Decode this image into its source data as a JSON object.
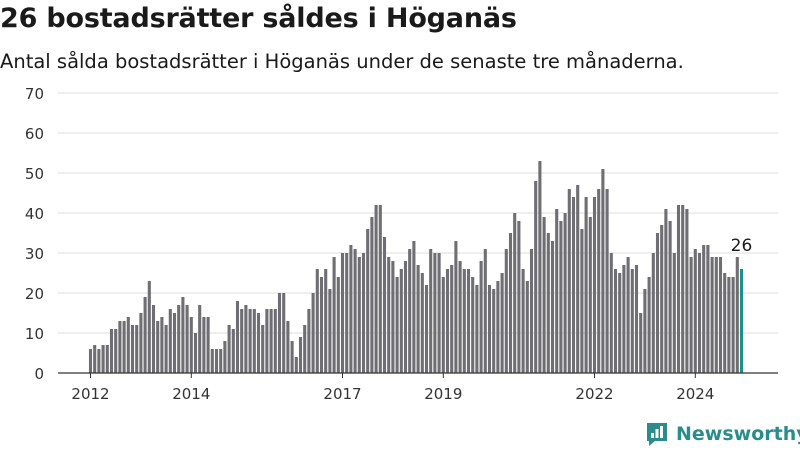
{
  "header": {
    "title": "26 bostadsrätter såldes i Höganäs",
    "subtitle": "Antal sålda bostadsrätter i Höganäs under de senaste tre månaderna."
  },
  "brand": {
    "name": "Newsworthy",
    "icon": "newsworthy-logo-icon",
    "color": "#2a8c8c"
  },
  "chart_data": {
    "type": "bar",
    "title": "26 bostadsrätter såldes i Höganäs",
    "subtitle": "Antal sålda bostadsrätter i Höganäs under de senaste tre månaderna.",
    "xlabel": "",
    "ylabel": "",
    "ylim": [
      0,
      70
    ],
    "yticks": [
      "0",
      "10",
      "20",
      "30",
      "40",
      "50",
      "60",
      "70"
    ],
    "xticks": [
      {
        "label": "2012",
        "x": 2012.0
      },
      {
        "label": "2014",
        "x": 2014.0
      },
      {
        "label": "2017",
        "x": 2017.0
      },
      {
        "label": "2019",
        "x": 2019.0
      },
      {
        "label": "2022",
        "x": 2022.0
      },
      {
        "label": "2024",
        "x": 2024.0
      }
    ],
    "grid": true,
    "bar_color": "#6e6e73",
    "highlight_color": "#17918a",
    "first_month": "2012-01",
    "last_label": "26",
    "values": [
      6,
      7,
      6,
      7,
      7,
      11,
      11,
      13,
      13,
      14,
      12,
      12,
      15,
      19,
      23,
      17,
      13,
      14,
      12,
      16,
      15,
      17,
      19,
      17,
      14,
      10,
      17,
      14,
      14,
      6,
      6,
      6,
      8,
      12,
      11,
      18,
      16,
      17,
      16,
      16,
      15,
      12,
      16,
      16,
      16,
      20,
      20,
      13,
      8,
      4,
      9,
      12,
      16,
      20,
      26,
      24,
      26,
      21,
      29,
      24,
      30,
      30,
      32,
      31,
      29,
      30,
      36,
      39,
      42,
      42,
      34,
      29,
      28,
      24,
      26,
      28,
      31,
      33,
      27,
      25,
      22,
      31,
      30,
      30,
      24,
      26,
      27,
      33,
      28,
      26,
      26,
      24,
      22,
      28,
      31,
      22,
      21,
      23,
      25,
      31,
      35,
      40,
      38,
      26,
      23,
      31,
      48,
      53,
      39,
      35,
      33,
      41,
      38,
      40,
      46,
      44,
      47,
      36,
      44,
      39,
      44,
      46,
      51,
      46,
      30,
      26,
      25,
      27,
      29,
      26,
      27,
      15,
      21,
      24,
      30,
      35,
      37,
      41,
      38,
      30,
      42,
      42,
      41,
      29,
      31,
      30,
      32,
      32,
      29,
      29,
      29,
      25,
      24,
      24,
      29,
      26
    ]
  }
}
